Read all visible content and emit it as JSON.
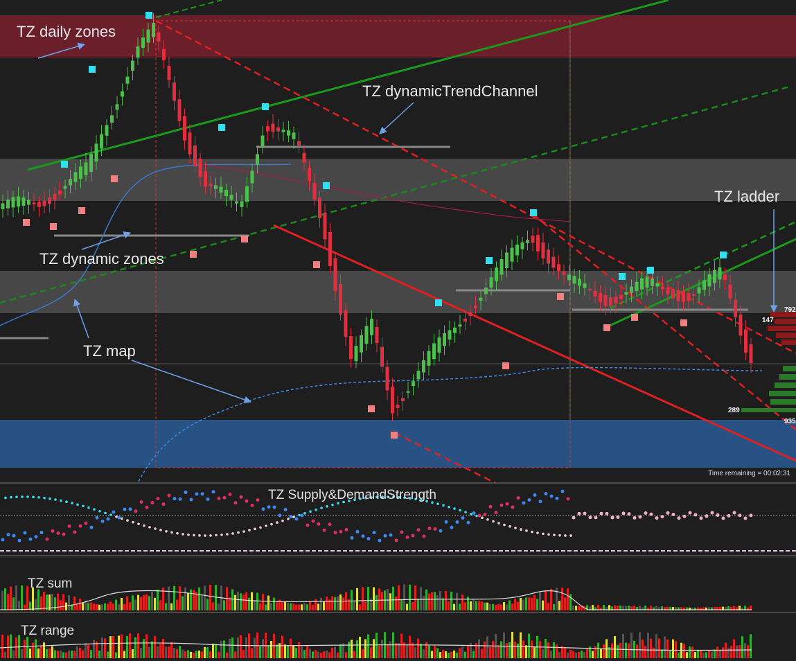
{
  "annotations": {
    "daily_zones": "TZ daily zones",
    "trend_channel": "TZ dynamicTrendChannel",
    "ladder": "TZ ladder",
    "dynamic_zones": "TZ dynamic zones",
    "map": "TZ map"
  },
  "panels": {
    "supply_demand": "TZ Supply&DemandStrength",
    "sum": "TZ sum",
    "range": "TZ range"
  },
  "ladder_levels": [
    792,
    147,
    289,
    935
  ],
  "status": "Time remaining = 00:02:31"
}
